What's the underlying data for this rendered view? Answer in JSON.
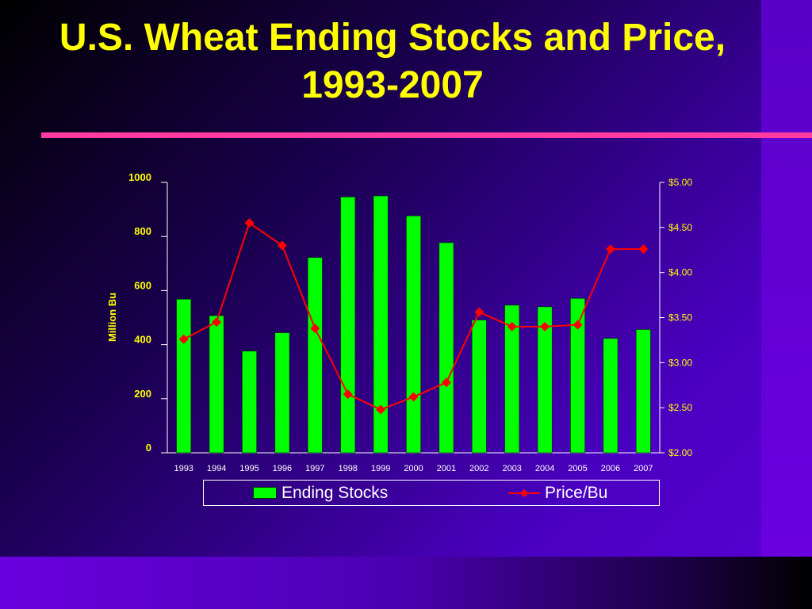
{
  "title": "U.S. Wheat Ending Stocks and Price, 1993-2007",
  "colors": {
    "title": "#ffff00",
    "bar": "#00ff00",
    "line": "#ff0000",
    "axis_text": "#ffff00",
    "category_text": "#ffffff",
    "rule": "#ff3aa0"
  },
  "chart_data": {
    "type": "bar",
    "title": "",
    "categories": [
      "1993",
      "1994",
      "1995",
      "1996",
      "1997",
      "1998",
      "1999",
      "2000",
      "2001",
      "2002",
      "2003",
      "2004",
      "2005",
      "2006",
      "2007"
    ],
    "series": [
      {
        "name": "Ending Stocks",
        "type": "bar",
        "axis": "left",
        "values": [
          568,
          507,
          376,
          444,
          722,
          946,
          950,
          876,
          777,
          491,
          546,
          540,
          571,
          423,
          456
        ]
      },
      {
        "name": "Price/Bu",
        "type": "line",
        "axis": "right",
        "values": [
          3.26,
          3.45,
          4.55,
          4.3,
          3.38,
          2.65,
          2.48,
          2.62,
          2.78,
          3.56,
          3.4,
          3.4,
          3.42,
          4.26,
          4.26
        ]
      }
    ],
    "ylabel": "Million Bu",
    "ylim": [
      0,
      1000
    ],
    "yticks": [
      "0",
      "200",
      "400",
      "600",
      "800",
      "1000"
    ],
    "y2lim": [
      2.0,
      5.0
    ],
    "y2ticks": [
      "$2.00",
      "$2.50",
      "$3.00",
      "$3.50",
      "$4.00",
      "$4.50",
      "$5.00"
    ],
    "grid": false,
    "legend": "bottom"
  }
}
